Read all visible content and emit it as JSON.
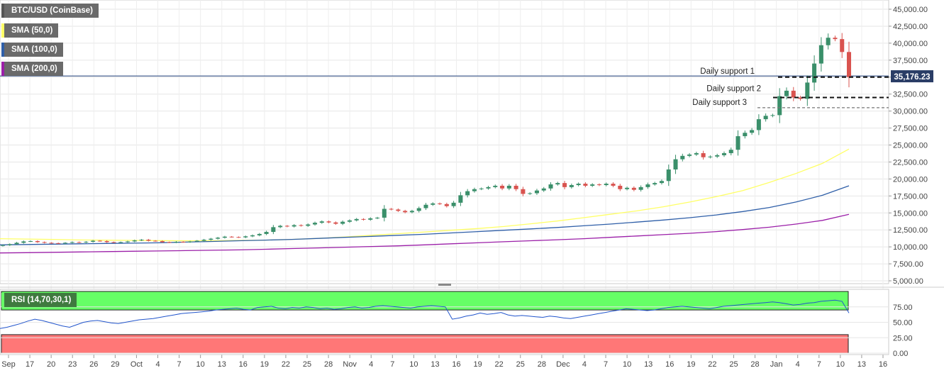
{
  "chart_data": {
    "type": "candlestick",
    "title": "BTC/USD (CoinBase)",
    "last_price_label": "35,176.23",
    "price_axis": {
      "range": [
        5000,
        45000
      ],
      "ticks": [
        "5,000.00",
        "7,500.00",
        "10,000.00",
        "12,500.00",
        "15,000.00",
        "17,500.00",
        "20,000.00",
        "22,500.00",
        "25,000.00",
        "27,500.00",
        "30,000.00",
        "32,500.00",
        "35,000.00",
        "37,500.00",
        "40,000.00",
        "42,500.00",
        "45,000.00"
      ]
    },
    "x_axis_labels": [
      "Sep",
      "17",
      "20",
      "23",
      "26",
      "29",
      "Oct",
      "4",
      "7",
      "10",
      "13",
      "16",
      "19",
      "22",
      "25",
      "28",
      "Nov",
      "4",
      "7",
      "10",
      "13",
      "16",
      "19",
      "22",
      "25",
      "28",
      "Dec",
      "4",
      "7",
      "10",
      "13",
      "16",
      "19",
      "22",
      "25",
      "28",
      "Jan",
      "4",
      "7",
      "10",
      "13",
      "16"
    ],
    "grid": true,
    "legend_placement": "top-left",
    "indicators": [
      {
        "name": "SMA (50,0)",
        "color": "#ffff66",
        "values": [
          11200,
          11150,
          11100,
          11020,
          10980,
          10950,
          10920,
          10900,
          10900,
          10950,
          11000,
          11100,
          11250,
          11450,
          11700,
          11950,
          12200,
          12450,
          12700,
          13000,
          13400,
          13800,
          14300,
          14800,
          15300,
          15900,
          16600,
          17400,
          18300,
          19500,
          20800,
          22300,
          24400
        ]
      },
      {
        "name": "SMA (100,0)",
        "color": "#2f5fa8",
        "values": [
          10300,
          10350,
          10400,
          10450,
          10500,
          10550,
          10600,
          10700,
          10800,
          10900,
          11000,
          11100,
          11250,
          11400,
          11550,
          11700,
          11850,
          12050,
          12250,
          12450,
          12650,
          12850,
          13100,
          13350,
          13650,
          13950,
          14300,
          14700,
          15200,
          15800,
          16600,
          17600,
          19000
        ]
      },
      {
        "name": "SMA (200,0)",
        "color": "#9b1fa8",
        "values": [
          9100,
          9150,
          9200,
          9250,
          9300,
          9350,
          9400,
          9450,
          9500,
          9550,
          9650,
          9750,
          9850,
          9950,
          10050,
          10150,
          10300,
          10450,
          10600,
          10750,
          10900,
          11050,
          11200,
          11400,
          11600,
          11800,
          12000,
          12250,
          12550,
          12900,
          13350,
          13900,
          14800
        ]
      }
    ],
    "support_lines": [
      {
        "label": "Daily support 1",
        "value": 35000,
        "style": "dashed-bold"
      },
      {
        "label": "Daily support 2",
        "value": 32000,
        "style": "dashed-bold"
      },
      {
        "label": "Daily support 3",
        "value": 30500,
        "style": "dashed-gray"
      }
    ],
    "candles_close": [
      10250,
      10400,
      10600,
      10800,
      10850,
      10700,
      10600,
      10550,
      10500,
      10600,
      10700,
      10650,
      10750,
      10900,
      10850,
      10700,
      10650,
      10700,
      10800,
      10950,
      11050,
      10900,
      10850,
      10700,
      10650,
      10750,
      10700,
      10800,
      10900,
      11050,
      11200,
      11350,
      11500,
      11450,
      11400,
      11550,
      11700,
      11900,
      12200,
      12900,
      13100,
      13000,
      13200,
      13100,
      13300,
      13550,
      13750,
      13600,
      13400,
      13700,
      13900,
      14100,
      14000,
      14200,
      14300,
      15600,
      15500,
      15300,
      15100,
      15300,
      15700,
      16200,
      16400,
      16300,
      16000,
      16500,
      17600,
      18200,
      18500,
      18600,
      18800,
      19000,
      18600,
      19000,
      18500,
      17800,
      17900,
      18300,
      18600,
      19200,
      19400,
      18800,
      19100,
      19300,
      19000,
      19200,
      19100,
      19300,
      19000,
      18500,
      18700,
      18400,
      18800,
      19200,
      19400,
      19700,
      21400,
      22900,
      23400,
      23600,
      23800,
      23200,
      23300,
      23500,
      23800,
      24300,
      26300,
      26800,
      27200,
      28800,
      29300,
      29400,
      32200,
      33000,
      32000,
      31800,
      34200,
      37000,
      39700,
      40800,
      40600,
      38700,
      35000
    ]
  },
  "rsi": {
    "label": "RSI (14,70,30,1)",
    "range": [
      0,
      100
    ],
    "ticks": [
      "0.00",
      "25.00",
      "50.00",
      "75.00"
    ],
    "overbought": 70,
    "oversold": 30,
    "zone_colors": {
      "overbought": "#66ff66",
      "oversold": "#ff7777",
      "line": "#2255cc"
    },
    "values": [
      40,
      42,
      45,
      48,
      52,
      55,
      53,
      50,
      47,
      44,
      42,
      46,
      50,
      52,
      53,
      51,
      49,
      48,
      50,
      52,
      54,
      55,
      56,
      58,
      60,
      62,
      64,
      65,
      66,
      67,
      68,
      70,
      71,
      72,
      73,
      71,
      70,
      74,
      75,
      76,
      73,
      72,
      74,
      73,
      75,
      74,
      72,
      73,
      71,
      72,
      74,
      75,
      73,
      74,
      76,
      77,
      76,
      75,
      74,
      73,
      75,
      76,
      77,
      76,
      75,
      55,
      57,
      60,
      62,
      65,
      63,
      64,
      66,
      62,
      60,
      61,
      60,
      59,
      58,
      60,
      59,
      57,
      56,
      58,
      60,
      62,
      64,
      66,
      68,
      70,
      72,
      71,
      70,
      69,
      70,
      72,
      74,
      75,
      76,
      75,
      74,
      73,
      72,
      74,
      76,
      77,
      78,
      79,
      80,
      81,
      82,
      83,
      82,
      80,
      78,
      79,
      81,
      82,
      84,
      85,
      86,
      84,
      65
    ]
  },
  "legend": [
    {
      "label": "BTC/USD (CoinBase)",
      "color": "#555555"
    },
    {
      "label": "SMA (50,0)",
      "color": "#ffff66"
    },
    {
      "label": "SMA (100,0)",
      "color": "#2f5fa8"
    },
    {
      "label": "SMA (200,0)",
      "color": "#9b1fa8"
    }
  ],
  "colors": {
    "up_candle": "#3a8f6a",
    "down_candle": "#d9534f",
    "price_line": "#1f3f7a",
    "last_price_bg": "#2a3d66"
  }
}
